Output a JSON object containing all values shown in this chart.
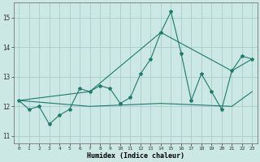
{
  "xlabel": "Humidex (Indice chaleur)",
  "background_color": "#cce8e4",
  "grid_color": "#aaccca",
  "line_color": "#1e7a6a",
  "xlim": [
    -0.5,
    23.5
  ],
  "ylim": [
    10.75,
    15.5
  ],
  "yticks": [
    11,
    12,
    13,
    14,
    15
  ],
  "xticks": [
    0,
    1,
    2,
    3,
    4,
    5,
    6,
    7,
    8,
    9,
    10,
    11,
    12,
    13,
    14,
    15,
    16,
    17,
    18,
    19,
    20,
    21,
    22,
    23
  ],
  "line1_x": [
    0,
    1,
    2,
    3,
    4,
    5,
    6,
    7,
    8,
    9,
    10,
    11,
    12,
    13,
    14,
    15,
    16,
    17,
    18,
    19,
    20,
    21,
    22,
    23
  ],
  "line1_y": [
    12.2,
    11.9,
    12.0,
    11.4,
    11.7,
    11.9,
    12.6,
    12.5,
    12.7,
    12.6,
    12.1,
    12.3,
    13.1,
    13.6,
    14.5,
    15.2,
    13.8,
    12.2,
    13.1,
    12.5,
    11.9,
    13.2,
    13.7,
    13.6
  ],
  "line2_x": [
    0,
    7,
    14,
    21,
    23
  ],
  "line2_y": [
    12.2,
    12.5,
    14.5,
    13.2,
    13.6
  ],
  "line3_x": [
    0,
    7,
    14,
    21,
    23
  ],
  "line3_y": [
    12.2,
    12.0,
    12.1,
    12.0,
    12.5
  ]
}
